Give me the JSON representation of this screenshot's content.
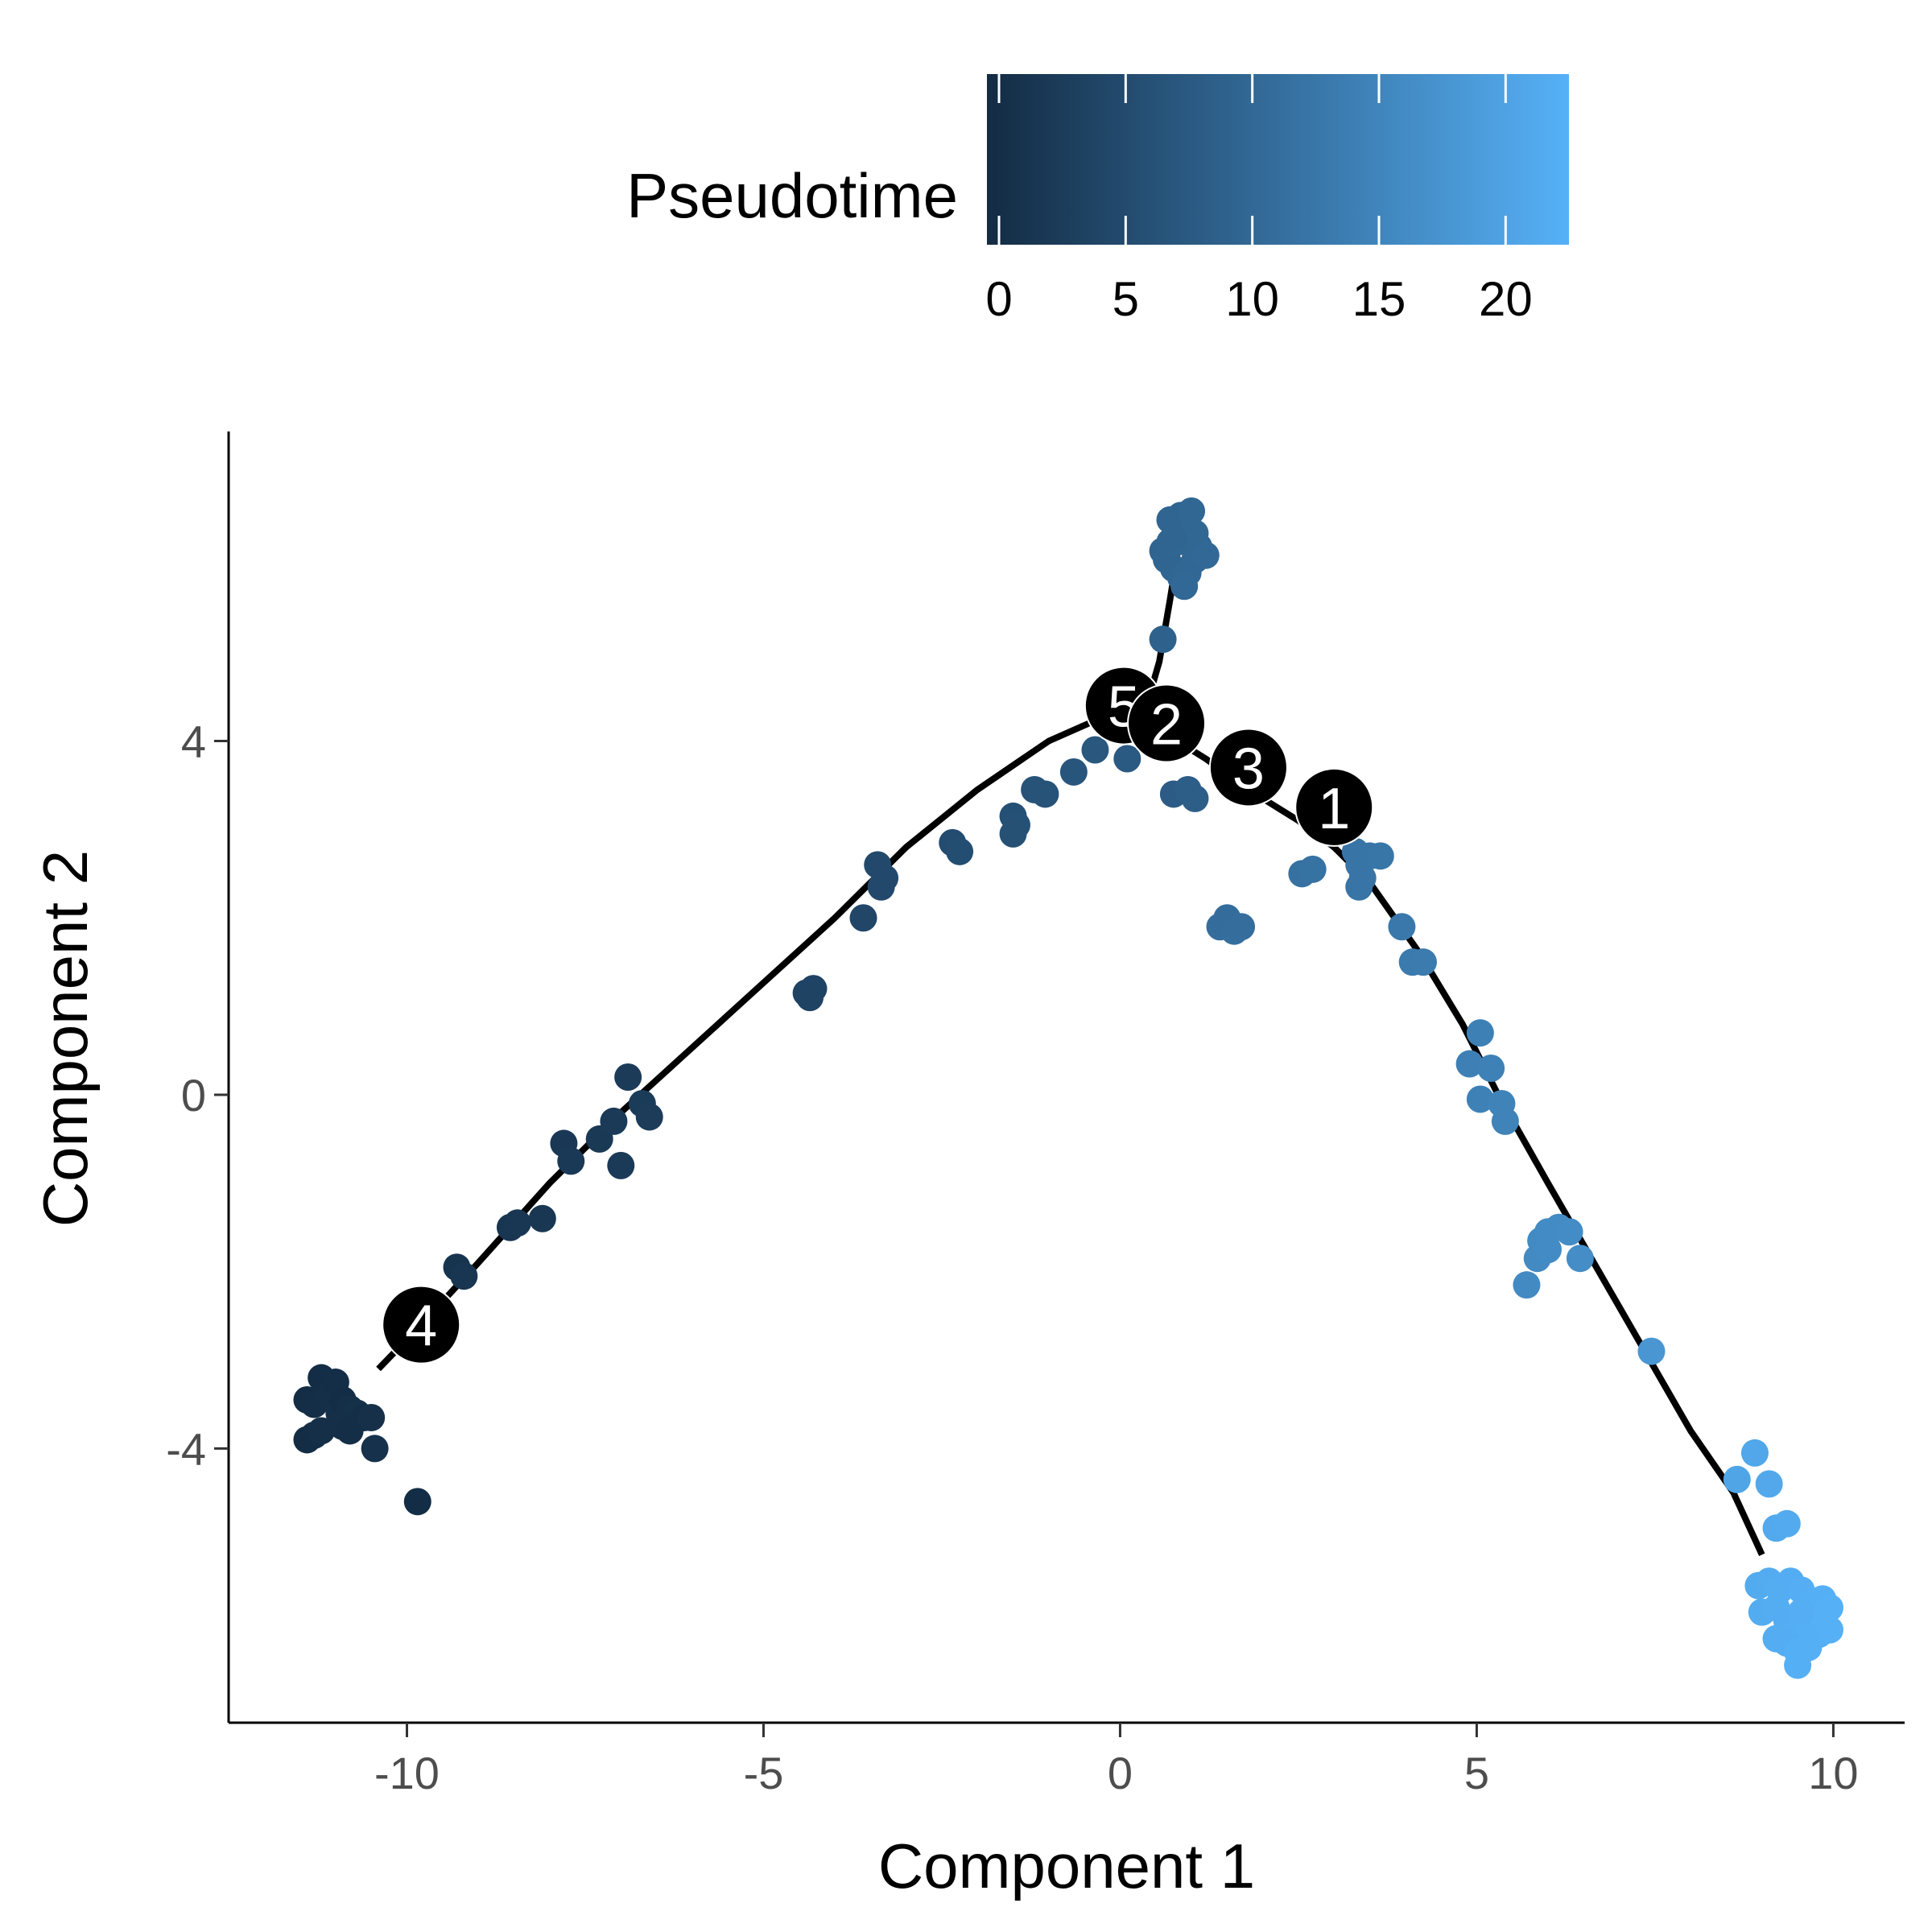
{
  "chart_data": {
    "type": "scatter",
    "title": "",
    "xlabel": "Component 1",
    "ylabel": "Component 2",
    "xlim": [
      -12.5,
      11.0
    ],
    "ylim": [
      -7.1,
      7.5
    ],
    "xticks": [
      -10,
      -5,
      0,
      5,
      10
    ],
    "xtick_labels": [
      "-10",
      "-5",
      "0",
      "5",
      "10"
    ],
    "yticks": [
      -4,
      0,
      4
    ],
    "ytick_labels": [
      "-4",
      "0",
      "4"
    ],
    "grid": false,
    "legend": {
      "title": "Pseudotime",
      "position": "top",
      "range": [
        0,
        22.5
      ],
      "ticks": [
        0,
        5,
        10,
        15,
        20
      ],
      "tick_labels": [
        "0",
        "5",
        "10",
        "15",
        "20"
      ],
      "color_low": "#132B43",
      "color_high": "#56B1F7"
    },
    "trajectory": {
      "color": "#000000",
      "branches": [
        [
          [
            -10.4,
            -3.1
          ],
          [
            -9.8,
            -2.6
          ],
          [
            -9.0,
            -1.9
          ],
          [
            -8.0,
            -1.0
          ],
          [
            -7.0,
            -0.2
          ],
          [
            -5.5,
            0.9
          ],
          [
            -4.0,
            2.0
          ],
          [
            -3.0,
            2.8
          ],
          [
            -2.0,
            3.45
          ],
          [
            -1.0,
            4.0
          ],
          [
            -0.3,
            4.25
          ],
          [
            0.1,
            4.4
          ]
        ],
        [
          [
            0.1,
            4.4
          ],
          [
            0.6,
            4.1
          ],
          [
            1.2,
            3.8
          ],
          [
            1.8,
            3.45
          ],
          [
            2.5,
            3.1
          ],
          [
            3.0,
            2.8
          ],
          [
            3.5,
            2.4
          ],
          [
            4.2,
            1.6
          ],
          [
            4.8,
            0.8
          ],
          [
            5.3,
            0.0
          ],
          [
            6.0,
            -1.0
          ],
          [
            7.0,
            -2.4
          ],
          [
            8.0,
            -3.8
          ],
          [
            8.6,
            -4.5
          ],
          [
            9.0,
            -5.2
          ]
        ],
        [
          [
            0.1,
            4.4
          ],
          [
            0.3,
            4.2
          ],
          [
            0.55,
            4.9
          ],
          [
            0.7,
            5.6
          ],
          [
            0.8,
            6.1
          ]
        ]
      ]
    },
    "nodes": [
      {
        "label": "5",
        "x": 0.05,
        "y": 4.4
      },
      {
        "label": "2",
        "x": 0.65,
        "y": 4.2
      },
      {
        "label": "3",
        "x": 1.8,
        "y": 3.7
      },
      {
        "label": "1",
        "x": 3.0,
        "y": 3.25
      },
      {
        "label": "4",
        "x": -9.8,
        "y": -2.6
      }
    ],
    "points": [
      {
        "x": -11.4,
        "y": -3.45,
        "t": 0.3
      },
      {
        "x": -11.3,
        "y": -3.5,
        "t": 0.5
      },
      {
        "x": -11.2,
        "y": -3.2,
        "t": 0.4
      },
      {
        "x": -11.1,
        "y": -3.4,
        "t": 0.6
      },
      {
        "x": -11.0,
        "y": -3.25,
        "t": 0.5
      },
      {
        "x": -10.95,
        "y": -3.6,
        "t": 0.7
      },
      {
        "x": -10.9,
        "y": -3.45,
        "t": 0.4
      },
      {
        "x": -10.8,
        "y": -3.55,
        "t": 0.6
      },
      {
        "x": -10.7,
        "y": -3.6,
        "t": 0.8
      },
      {
        "x": -10.6,
        "y": -3.65,
        "t": 0.5
      },
      {
        "x": -11.4,
        "y": -3.9,
        "t": 0.3
      },
      {
        "x": -11.3,
        "y": -3.85,
        "t": 0.4
      },
      {
        "x": -11.2,
        "y": -3.8,
        "t": 0.6
      },
      {
        "x": -10.9,
        "y": -3.75,
        "t": 0.7
      },
      {
        "x": -10.8,
        "y": -3.8,
        "t": 0.5
      },
      {
        "x": -10.5,
        "y": -3.65,
        "t": 0.9
      },
      {
        "x": -10.45,
        "y": -4.0,
        "t": 1.0
      },
      {
        "x": -9.85,
        "y": -4.6,
        "t": 0.4
      },
      {
        "x": -9.3,
        "y": -1.95,
        "t": 1.5
      },
      {
        "x": -9.2,
        "y": -2.05,
        "t": 1.8
      },
      {
        "x": -8.55,
        "y": -1.5,
        "t": 1.7
      },
      {
        "x": -8.45,
        "y": -1.45,
        "t": 1.9
      },
      {
        "x": -8.1,
        "y": -1.4,
        "t": 2.0
      },
      {
        "x": -7.8,
        "y": -0.55,
        "t": 2.2
      },
      {
        "x": -7.7,
        "y": -0.75,
        "t": 2.4
      },
      {
        "x": -7.3,
        "y": -0.5,
        "t": 2.3
      },
      {
        "x": -7.1,
        "y": -0.3,
        "t": 2.5
      },
      {
        "x": -7.0,
        "y": -0.8,
        "t": 2.6
      },
      {
        "x": -6.9,
        "y": 0.2,
        "t": 2.7
      },
      {
        "x": -6.7,
        "y": -0.1,
        "t": 2.8
      },
      {
        "x": -6.6,
        "y": -0.25,
        "t": 2.9
      },
      {
        "x": -4.4,
        "y": 1.15,
        "t": 4.0
      },
      {
        "x": -4.3,
        "y": 1.2,
        "t": 4.1
      },
      {
        "x": -4.35,
        "y": 1.1,
        "t": 4.0
      },
      {
        "x": -3.6,
        "y": 2.0,
        "t": 4.6
      },
      {
        "x": -3.4,
        "y": 2.6,
        "t": 5.0
      },
      {
        "x": -3.3,
        "y": 2.45,
        "t": 5.1
      },
      {
        "x": -3.35,
        "y": 2.35,
        "t": 5.0
      },
      {
        "x": -2.35,
        "y": 2.85,
        "t": 5.6
      },
      {
        "x": -2.25,
        "y": 2.75,
        "t": 5.8
      },
      {
        "x": -1.5,
        "y": 3.15,
        "t": 6.2
      },
      {
        "x": -1.45,
        "y": 3.05,
        "t": 6.4
      },
      {
        "x": -1.5,
        "y": 2.95,
        "t": 6.3
      },
      {
        "x": -1.2,
        "y": 3.45,
        "t": 6.7
      },
      {
        "x": -1.05,
        "y": 3.4,
        "t": 6.8
      },
      {
        "x": -0.65,
        "y": 3.65,
        "t": 7.1
      },
      {
        "x": -0.35,
        "y": 3.9,
        "t": 7.4
      },
      {
        "x": 0.1,
        "y": 3.8,
        "t": 7.8
      },
      {
        "x": 0.75,
        "y": 3.4,
        "t": 8.3
      },
      {
        "x": 0.95,
        "y": 3.45,
        "t": 8.5
      },
      {
        "x": 1.05,
        "y": 3.35,
        "t": 8.6
      },
      {
        "x": 0.6,
        "y": 5.15,
        "t": 9.2
      },
      {
        "x": 0.6,
        "y": 6.15,
        "t": 9.6
      },
      {
        "x": 0.7,
        "y": 6.25,
        "t": 9.7
      },
      {
        "x": 0.8,
        "y": 6.4,
        "t": 9.8
      },
      {
        "x": 0.9,
        "y": 6.45,
        "t": 9.9
      },
      {
        "x": 1.05,
        "y": 6.35,
        "t": 10.0
      },
      {
        "x": 1.1,
        "y": 6.2,
        "t": 10.1
      },
      {
        "x": 0.65,
        "y": 6.05,
        "t": 9.7
      },
      {
        "x": 0.75,
        "y": 5.95,
        "t": 9.8
      },
      {
        "x": 0.85,
        "y": 5.85,
        "t": 9.9
      },
      {
        "x": 0.95,
        "y": 5.9,
        "t": 10.0
      },
      {
        "x": 1.05,
        "y": 6.05,
        "t": 10.1
      },
      {
        "x": 0.7,
        "y": 6.5,
        "t": 9.7
      },
      {
        "x": 0.85,
        "y": 6.55,
        "t": 9.8
      },
      {
        "x": 1.0,
        "y": 6.6,
        "t": 10.0
      },
      {
        "x": 0.9,
        "y": 5.75,
        "t": 10.2
      },
      {
        "x": 0.8,
        "y": 6.25,
        "t": 9.9
      },
      {
        "x": 1.2,
        "y": 6.1,
        "t": 10.3
      },
      {
        "x": 1.0,
        "y": 6.35,
        "t": 10.0
      },
      {
        "x": 0.75,
        "y": 6.3,
        "t": 9.8
      },
      {
        "x": 1.4,
        "y": 1.9,
        "t": 11.0
      },
      {
        "x": 1.5,
        "y": 2.0,
        "t": 11.1
      },
      {
        "x": 1.6,
        "y": 1.85,
        "t": 11.2
      },
      {
        "x": 1.7,
        "y": 1.9,
        "t": 11.3
      },
      {
        "x": 2.55,
        "y": 2.5,
        "t": 11.8
      },
      {
        "x": 2.7,
        "y": 2.55,
        "t": 11.9
      },
      {
        "x": 3.3,
        "y": 2.75,
        "t": 12.3
      },
      {
        "x": 3.35,
        "y": 2.6,
        "t": 12.4
      },
      {
        "x": 3.4,
        "y": 2.45,
        "t": 12.4
      },
      {
        "x": 3.5,
        "y": 2.7,
        "t": 12.5
      },
      {
        "x": 3.65,
        "y": 2.7,
        "t": 12.6
      },
      {
        "x": 3.35,
        "y": 2.35,
        "t": 12.3
      },
      {
        "x": 3.95,
        "y": 1.9,
        "t": 13.0
      },
      {
        "x": 4.1,
        "y": 1.5,
        "t": 13.3
      },
      {
        "x": 4.25,
        "y": 1.5,
        "t": 13.4
      },
      {
        "x": 5.05,
        "y": 0.7,
        "t": 14.2
      },
      {
        "x": 4.9,
        "y": 0.35,
        "t": 14.3
      },
      {
        "x": 5.2,
        "y": 0.3,
        "t": 14.4
      },
      {
        "x": 5.05,
        "y": -0.05,
        "t": 14.5
      },
      {
        "x": 5.35,
        "y": -0.1,
        "t": 14.7
      },
      {
        "x": 5.4,
        "y": -0.3,
        "t": 14.8
      },
      {
        "x": 5.9,
        "y": -1.65,
        "t": 15.9
      },
      {
        "x": 5.85,
        "y": -1.85,
        "t": 16.0
      },
      {
        "x": 6.0,
        "y": -1.55,
        "t": 16.1
      },
      {
        "x": 6.15,
        "y": -1.5,
        "t": 16.2
      },
      {
        "x": 6.3,
        "y": -1.55,
        "t": 16.3
      },
      {
        "x": 6.0,
        "y": -1.75,
        "t": 16.2
      },
      {
        "x": 6.45,
        "y": -1.85,
        "t": 16.5
      },
      {
        "x": 5.7,
        "y": -2.15,
        "t": 16.0
      },
      {
        "x": 7.45,
        "y": -2.9,
        "t": 18.0
      },
      {
        "x": 8.65,
        "y": -4.35,
        "t": 20.5
      },
      {
        "x": 8.9,
        "y": -4.05,
        "t": 20.8
      },
      {
        "x": 9.1,
        "y": -4.4,
        "t": 21.0
      },
      {
        "x": 9.2,
        "y": -4.9,
        "t": 21.2
      },
      {
        "x": 9.35,
        "y": -4.85,
        "t": 21.4
      },
      {
        "x": 8.95,
        "y": -5.55,
        "t": 21.5
      },
      {
        "x": 9.1,
        "y": -5.5,
        "t": 21.6
      },
      {
        "x": 9.25,
        "y": -5.6,
        "t": 21.8
      },
      {
        "x": 9.4,
        "y": -5.5,
        "t": 21.9
      },
      {
        "x": 9.55,
        "y": -5.6,
        "t": 22.0
      },
      {
        "x": 9.7,
        "y": -5.75,
        "t": 22.1
      },
      {
        "x": 9.85,
        "y": -5.7,
        "t": 22.2
      },
      {
        "x": 9.95,
        "y": -5.8,
        "t": 22.3
      },
      {
        "x": 9.0,
        "y": -5.85,
        "t": 21.6
      },
      {
        "x": 9.2,
        "y": -5.8,
        "t": 21.7
      },
      {
        "x": 9.35,
        "y": -5.95,
        "t": 21.9
      },
      {
        "x": 9.5,
        "y": -6.05,
        "t": 22.0
      },
      {
        "x": 9.65,
        "y": -6.0,
        "t": 22.1
      },
      {
        "x": 9.8,
        "y": -6.1,
        "t": 22.2
      },
      {
        "x": 9.95,
        "y": -6.05,
        "t": 22.3
      },
      {
        "x": 9.2,
        "y": -6.15,
        "t": 21.8
      },
      {
        "x": 9.35,
        "y": -6.2,
        "t": 21.9
      },
      {
        "x": 9.5,
        "y": -6.3,
        "t": 22.1
      },
      {
        "x": 9.65,
        "y": -6.25,
        "t": 22.2
      },
      {
        "x": 9.85,
        "y": -5.9,
        "t": 22.3
      },
      {
        "x": 9.55,
        "y": -5.85,
        "t": 22.0
      },
      {
        "x": 9.5,
        "y": -6.45,
        "t": 22.1
      }
    ]
  }
}
